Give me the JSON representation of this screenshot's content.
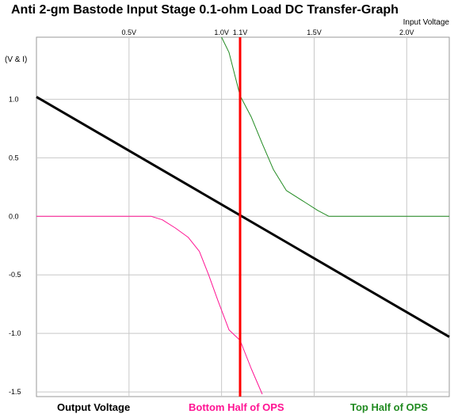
{
  "chart_data": {
    "type": "line",
    "title": "Anti 2-gm Bastode Input Stage 0.1-ohm Load DC Transfer-Graph",
    "xlabel": "Input Voltage",
    "ylabel": "(V & I)",
    "xlim": [
      0.0,
      2.23
    ],
    "ylim": [
      -1.54,
      1.53
    ],
    "x_ticks": [
      {
        "value": 0.5,
        "label": "0.5V"
      },
      {
        "value": 1.0,
        "label": "1.0V"
      },
      {
        "value": 1.1,
        "label": "1.1V"
      },
      {
        "value": 1.5,
        "label": "1.5V"
      },
      {
        "value": 2.0,
        "label": "2.0V"
      }
    ],
    "y_ticks": [
      {
        "value": 1.0,
        "label": "1.0"
      },
      {
        "value": 0.5,
        "label": "0.5"
      },
      {
        "value": 0.0,
        "label": "0.0"
      },
      {
        "value": -0.5,
        "label": "-0.5"
      },
      {
        "value": -1.0,
        "label": "-1.0"
      },
      {
        "value": -1.5,
        "label": "-1.5"
      }
    ],
    "grid": true,
    "vertical_marker": {
      "x": 1.1,
      "color": "#ff0000"
    },
    "series": [
      {
        "name": "Output Voltage",
        "color": "#000000",
        "points": [
          [
            0.0,
            1.02
          ],
          [
            2.23,
            -1.03
          ]
        ]
      },
      {
        "name": "Bottom Half of OPS",
        "color": "#ff1493",
        "points": [
          [
            0.0,
            0.0
          ],
          [
            0.62,
            0.0
          ],
          [
            0.68,
            -0.03
          ],
          [
            0.75,
            -0.1
          ],
          [
            0.82,
            -0.18
          ],
          [
            0.88,
            -0.3
          ],
          [
            0.93,
            -0.5
          ],
          [
            0.98,
            -0.72
          ],
          [
            1.04,
            -0.97
          ],
          [
            1.1,
            -1.06
          ],
          [
            1.16,
            -1.3
          ],
          [
            1.22,
            -1.52
          ]
        ]
      },
      {
        "name": "Top Half of OPS",
        "color": "#228b22",
        "points": [
          [
            1.0,
            1.53
          ],
          [
            1.04,
            1.4
          ],
          [
            1.1,
            1.03
          ],
          [
            1.16,
            0.85
          ],
          [
            1.22,
            0.62
          ],
          [
            1.28,
            0.4
          ],
          [
            1.35,
            0.22
          ],
          [
            1.45,
            0.12
          ],
          [
            1.52,
            0.05
          ],
          [
            1.58,
            0.0
          ],
          [
            2.23,
            0.0
          ]
        ]
      }
    ],
    "legend": "bottom"
  }
}
